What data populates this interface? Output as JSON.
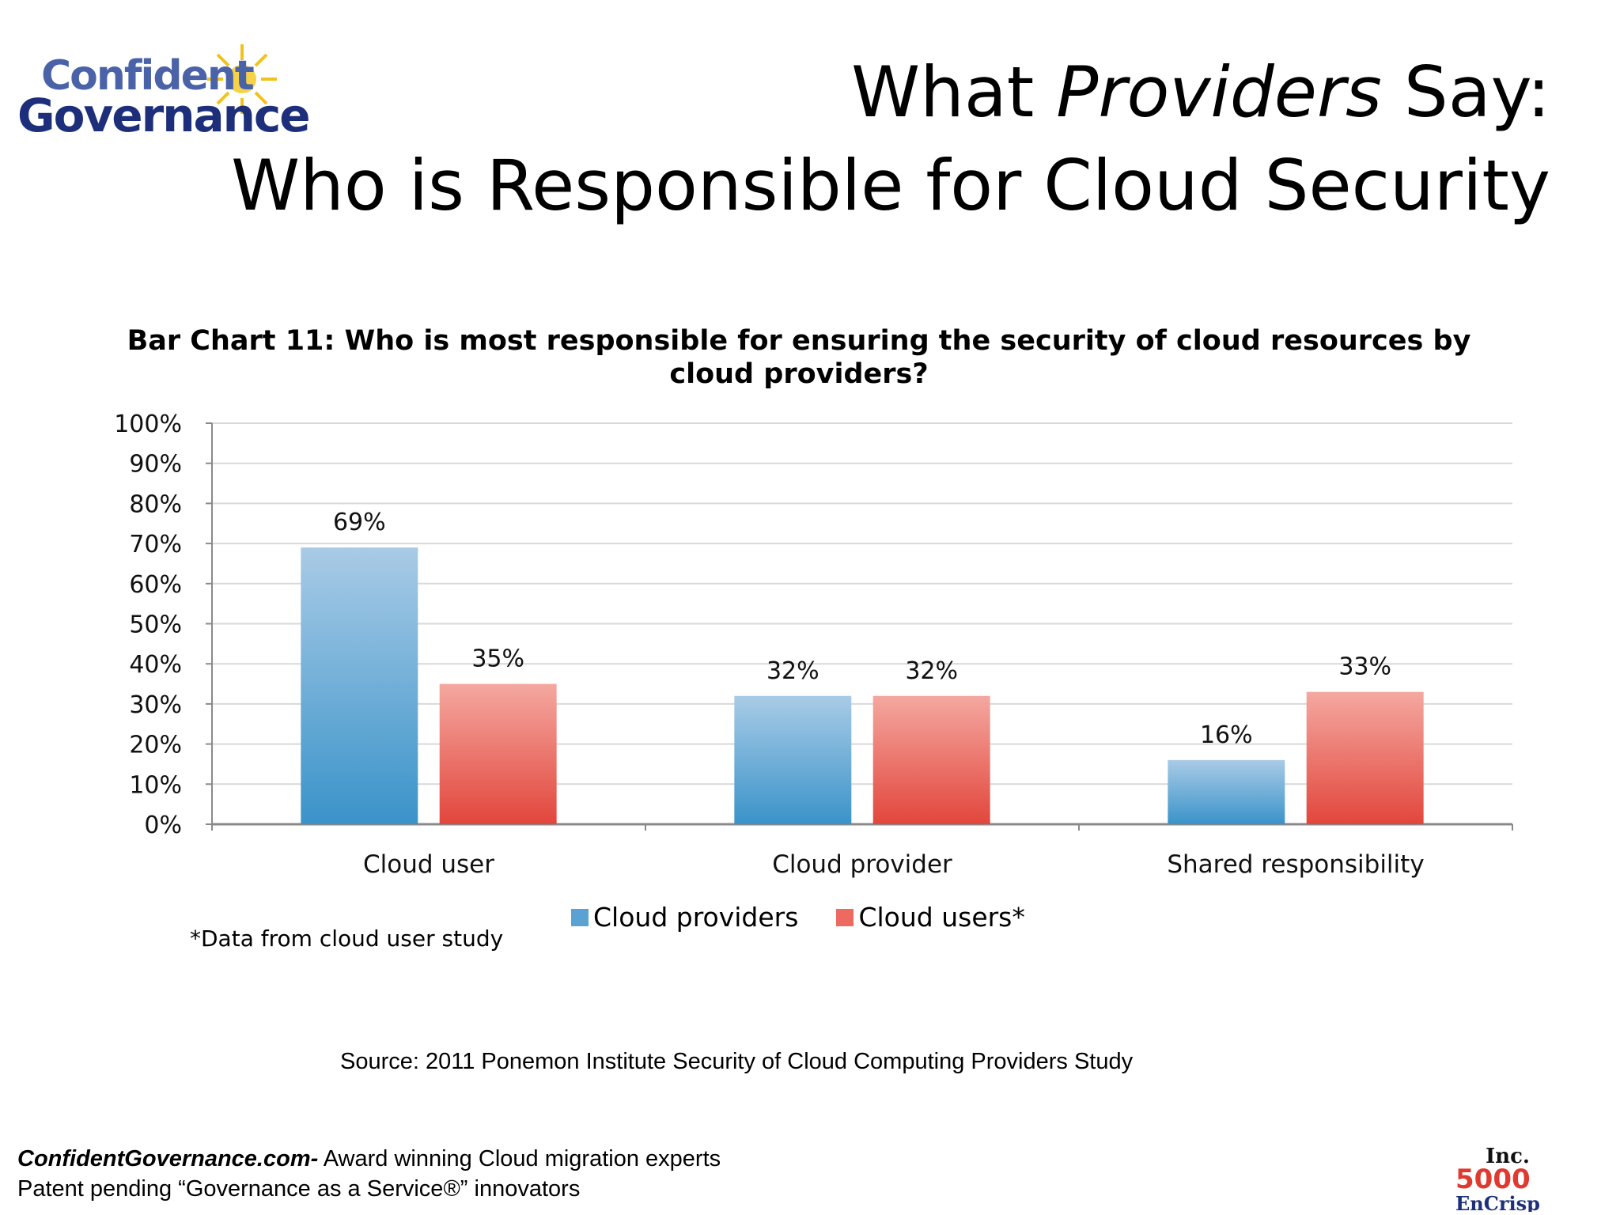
{
  "logo": {
    "line1": "Confident",
    "line2": "Governance"
  },
  "title": {
    "line1_pre": "What ",
    "line1_em": "Providers",
    "line1_post": " Say:",
    "line2": "Who is Responsible for Cloud Security"
  },
  "chart_data": {
    "type": "bar",
    "title": "Bar Chart 11: Who is most responsible for ensuring the security of cloud resources by cloud providers?",
    "categories": [
      "Cloud user",
      "Cloud provider",
      "Shared responsibility"
    ],
    "series": [
      {
        "name": "Cloud providers",
        "values": [
          69,
          32,
          16
        ],
        "color": "#3a93c9",
        "color_light": "#a9cbe6"
      },
      {
        "name": "Cloud users*",
        "values": [
          35,
          32,
          33
        ],
        "color": "#e2463c",
        "color_light": "#f4a8a0"
      }
    ],
    "data_labels": [
      [
        "69%",
        "32%",
        "16%"
      ],
      [
        "35%",
        "32%",
        "33%"
      ]
    ],
    "ylim": [
      0,
      100
    ],
    "yticks": [
      "0%",
      "10%",
      "20%",
      "30%",
      "40%",
      "50%",
      "60%",
      "70%",
      "80%",
      "90%",
      "100%"
    ],
    "grid": true,
    "legend_position": "bottom",
    "footnote": "*Data from cloud user study"
  },
  "source": "Source: 2011 Ponemon Institute  Security of Cloud Computing Providers Study",
  "footer": {
    "brand": "ConfidentGovernance.com-",
    "tagline": " Award winning Cloud migration experts",
    "line2": "Patent pending  “Governance as a Service®” innovators"
  },
  "badge": {
    "top": "Inc.",
    "middle": "5000",
    "bottom": "EnCrisp"
  }
}
